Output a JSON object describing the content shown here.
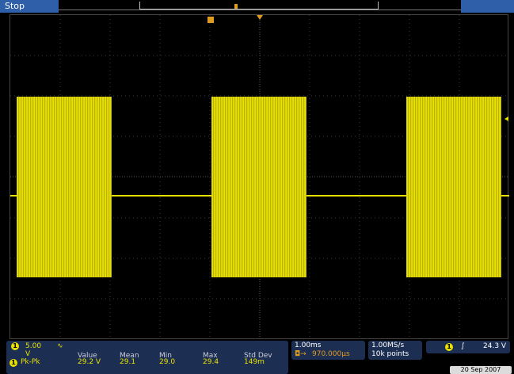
{
  "top": {
    "run_status": "Stop"
  },
  "vertical": {
    "channel": "1",
    "scale": "5.00 V",
    "coupling_icon": "bandwidth-limit-icon"
  },
  "measurements": {
    "headers": [
      "Value",
      "Mean",
      "Min",
      "Max",
      "Std Dev"
    ],
    "rows": [
      {
        "channel": "1",
        "label": "Pk-Pk",
        "value": "29.2 V",
        "mean": "29.1",
        "min": "29.0",
        "max": "29.4",
        "std_dev": "149m"
      }
    ]
  },
  "horizontal": {
    "scale": "1.00ms",
    "delay": "970.000µs",
    "delay_icon": "trigger-delay-icon"
  },
  "acquisition": {
    "sample_rate": "1.00MS/s",
    "record_length": "10k points"
  },
  "trigger": {
    "channel": "1",
    "slope_icon": "rising-edge-icon",
    "level": "24.3 V"
  },
  "date": "20 Sep 2007",
  "colors": {
    "trace": "#e8e000",
    "panel": "#1c2f52",
    "status": "#2f5fa8",
    "trigger_marker": "#e09a20"
  }
}
